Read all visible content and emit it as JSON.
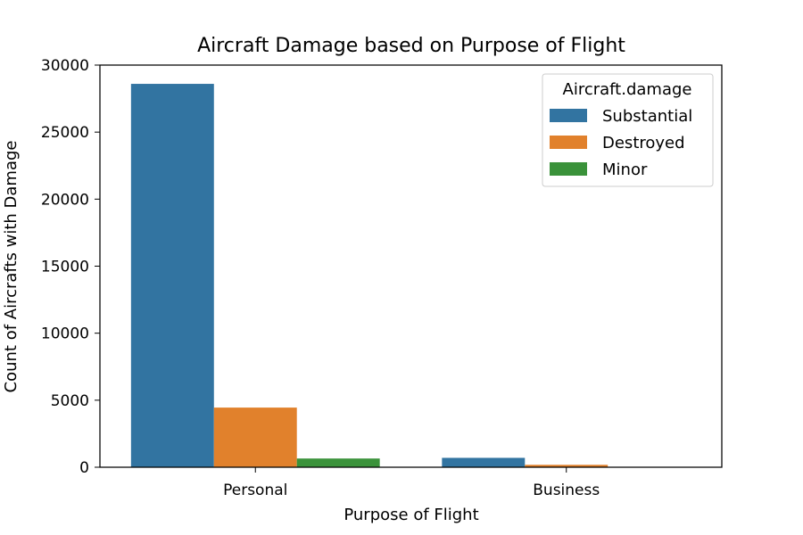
{
  "chart_data": {
    "type": "bar",
    "title": "Aircraft Damage based on Purpose of Flight",
    "xlabel": "Purpose of Flight",
    "ylabel": "Count of Aircrafts with Damage",
    "categories": [
      "Personal",
      "Business"
    ],
    "series": [
      {
        "name": "Substantial",
        "color": "#3274a1",
        "values": [
          28600,
          700
        ]
      },
      {
        "name": "Destroyed",
        "color": "#e1812c",
        "values": [
          4450,
          180
        ]
      },
      {
        "name": "Minor",
        "color": "#3a923a",
        "values": [
          650,
          0
        ]
      }
    ],
    "ylim": [
      0,
      30000
    ],
    "yticks": [
      0,
      5000,
      10000,
      15000,
      20000,
      25000,
      30000
    ],
    "grid": false,
    "legend": {
      "title": "Aircraft.damage",
      "placement": "top-right"
    }
  }
}
